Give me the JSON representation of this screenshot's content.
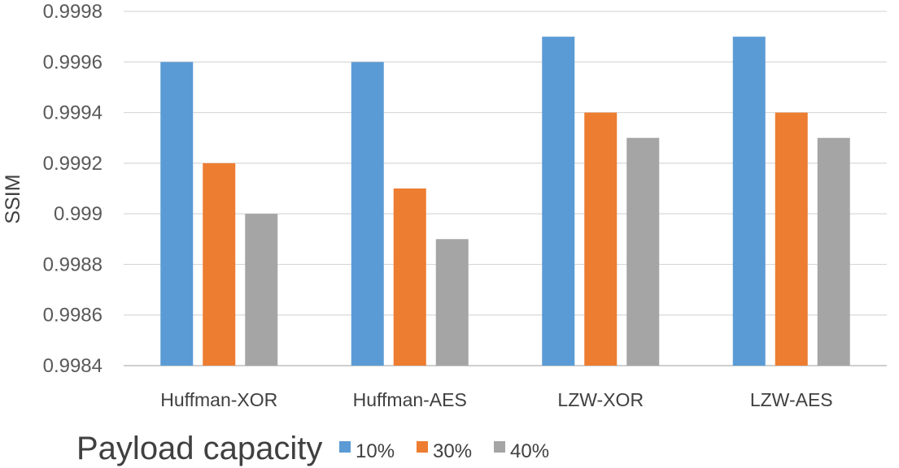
{
  "chart_data": {
    "type": "bar",
    "title": "",
    "xlabel": "",
    "ylabel": "SSIM",
    "ylim": [
      0.9984,
      0.9998
    ],
    "yticks": [
      "0.9984",
      "0.9986",
      "0.9988",
      "0.999",
      "0.9992",
      "0.9994",
      "0.9996",
      "0.9998"
    ],
    "grid": true,
    "categories": [
      "Huffman-XOR",
      "Huffman-AES",
      "LZW-XOR",
      "LZW-AES"
    ],
    "legend_title": "Payload capacity",
    "legend_position": "bottom",
    "series": [
      {
        "name": "10%",
        "color": "#5b9bd5",
        "values": [
          0.9996,
          0.9996,
          0.9997,
          0.9997
        ]
      },
      {
        "name": "30%",
        "color": "#ed7d31",
        "values": [
          0.9992,
          0.9991,
          0.9994,
          0.9994
        ]
      },
      {
        "name": "40%",
        "color": "#a5a5a5",
        "values": [
          0.999,
          0.9989,
          0.9993,
          0.9993
        ]
      }
    ]
  }
}
